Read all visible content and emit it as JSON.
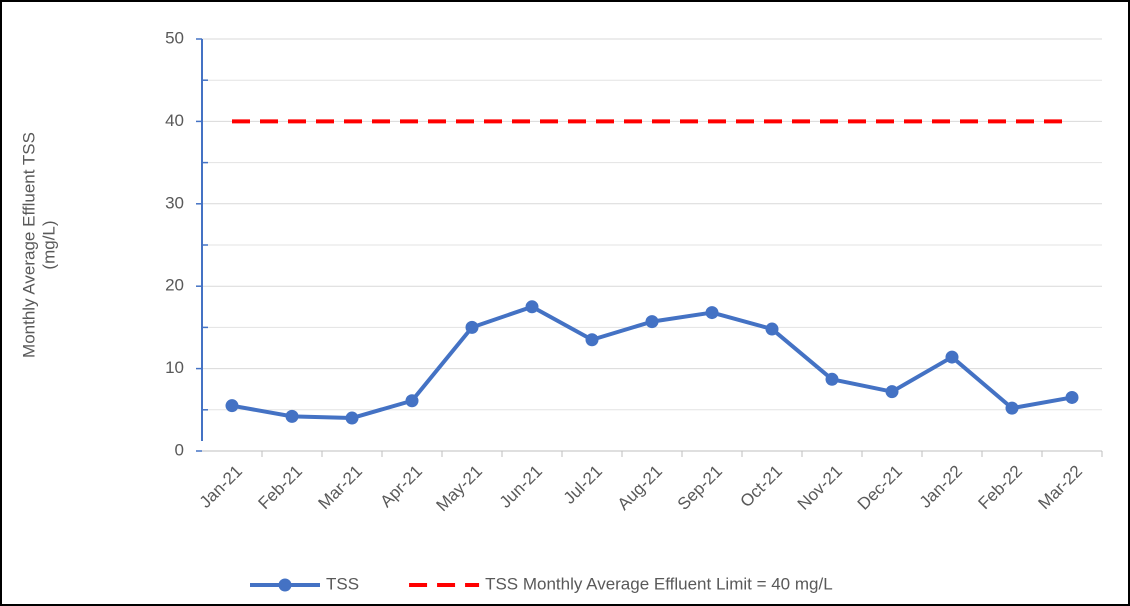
{
  "chart_data": {
    "type": "line",
    "ylabel": [
      "Monthly Average Effluent TSS",
      "(mg/L)"
    ],
    "categories": [
      "Jan-21",
      "Feb-21",
      "Mar-21",
      "Apr-21",
      "May-21",
      "Jun-21",
      "Jul-21",
      "Aug-21",
      "Sep-21",
      "Oct-21",
      "Nov-21",
      "Dec-21",
      "Jan-22",
      "Feb-22",
      "Mar-22"
    ],
    "series": [
      {
        "name": "TSS",
        "color": "#4472c4",
        "style": "solid",
        "markers": true,
        "values": [
          5.5,
          4.2,
          4.0,
          6.1,
          15.0,
          17.5,
          13.5,
          15.7,
          16.8,
          14.8,
          8.7,
          7.2,
          11.4,
          5.2,
          6.5
        ]
      },
      {
        "name": "TSS Monthly Average Effluent Limit = 40 mg/L",
        "color": "#ff0000",
        "style": "dashed",
        "markers": false,
        "values": [
          40,
          40,
          40,
          40,
          40,
          40,
          40,
          40,
          40,
          40,
          40,
          40,
          40,
          40,
          40
        ]
      }
    ],
    "ylim": [
      0,
      50
    ],
    "yticks": [
      0,
      10,
      20,
      30,
      40,
      50
    ],
    "minor_gridlines": [
      5,
      15,
      25,
      35,
      45
    ],
    "grid": true,
    "legend": "bottom"
  }
}
